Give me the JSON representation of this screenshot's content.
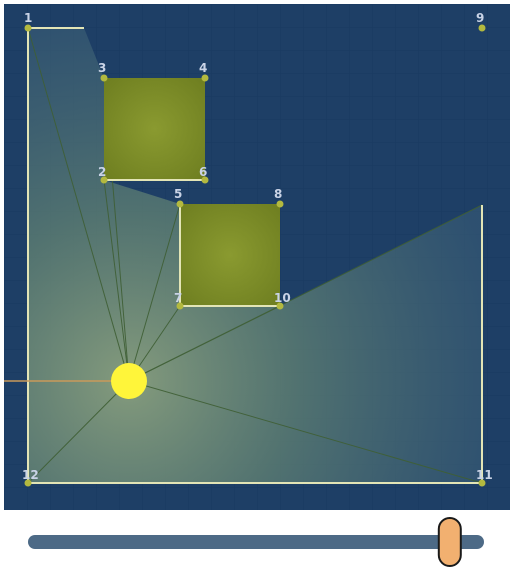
{
  "colors": {
    "background": "#1e3f66",
    "grid": "#16355a",
    "obstacle": "#7e8e26",
    "wall": "#e3e5b6",
    "vertex": "#b3b93f",
    "light": "#fff53a",
    "ray": "#3a5a2e",
    "slider_track": "#4d6a86",
    "slider_thumb": "#f2b070"
  },
  "icons": {
    "light": "light-source-icon"
  },
  "vertices": [
    {
      "label": "1"
    },
    {
      "label": "2"
    },
    {
      "label": "3"
    },
    {
      "label": "4"
    },
    {
      "label": "5"
    },
    {
      "label": "6"
    },
    {
      "label": "7"
    },
    {
      "label": "8"
    },
    {
      "label": "9"
    },
    {
      "label": "10"
    },
    {
      "label": "11"
    },
    {
      "label": "12"
    }
  ],
  "slider": {
    "value": 0.925
  }
}
